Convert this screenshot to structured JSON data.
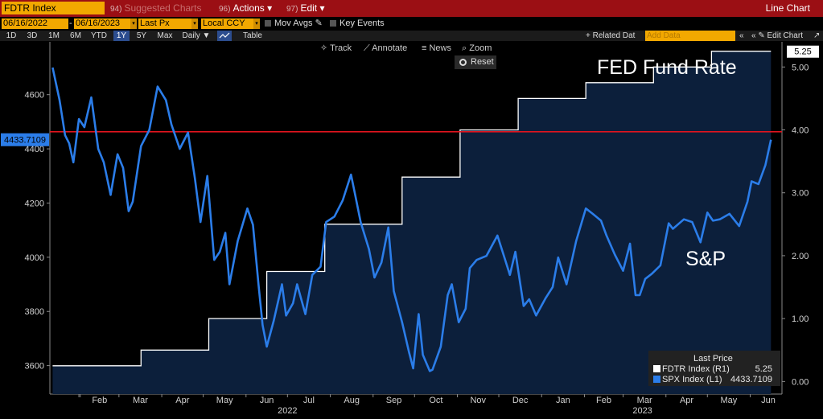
{
  "toolbar": {
    "ticker": "FDTR Index",
    "suggested_num": "94)",
    "suggested_label": "Suggested Charts",
    "actions_num": "96)",
    "actions_label": "Actions",
    "edit_num": "97)",
    "edit_label": "Edit",
    "title": "Line Chart",
    "date_from": "06/16/2022",
    "date_to": "06/16/2023",
    "field": "Last Px",
    "currency": "Local CCY",
    "mov_avgs": "Mov Avgs",
    "key_events": "Key Events",
    "ranges": [
      "1D",
      "3D",
      "1M",
      "6M",
      "YTD",
      "1Y",
      "5Y",
      "Max"
    ],
    "selected_range": "1Y",
    "frequency": "Daily",
    "table_label": "Table",
    "related_data": "+ Related Dat",
    "add_data_placeholder": "Add Data",
    "edit_chart": "Edit Chart"
  },
  "chart_controls": {
    "track": "Track",
    "annotate": "Annotate",
    "news": "News",
    "zoom": "Zoom",
    "reset": "Reset"
  },
  "annotations": {
    "fed": "FED Fund Rate",
    "sp": "S&P"
  },
  "legend": {
    "header": "Last Price",
    "rows": [
      {
        "label": "FDTR Index  (R1)",
        "value": "5.25",
        "color": "#ffffff"
      },
      {
        "label": "SPX Index  (L1)",
        "value": "4433.7109",
        "color": "#2b7de9"
      }
    ]
  },
  "colors": {
    "spx_line": "#2b7de9",
    "fdtr_line": "#ffffff",
    "fdtr_fill": "#0c1f3b",
    "ref_line": "#e0141e"
  },
  "chart_data": {
    "type": "line",
    "x_ticks_months": [
      "Feb",
      "Mar",
      "Apr",
      "May",
      "Jun",
      "Jul",
      "Aug",
      "Sep",
      "Oct",
      "Nov",
      "Dec",
      "Jan",
      "Feb",
      "Mar",
      "Apr",
      "May",
      "Jun"
    ],
    "x_ticks_years": [
      "2022",
      "2023"
    ],
    "left_axis": {
      "ticks": [
        "3600",
        "3800",
        "4000",
        "4200",
        "4400",
        "4600"
      ],
      "range": [
        3495,
        4795
      ]
    },
    "right_axis": {
      "ticks": [
        "0.00",
        "1.00",
        "2.00",
        "3.00",
        "4.00",
        "5.00"
      ],
      "range": [
        -0.2,
        5.4
      ]
    },
    "last_values": {
      "spx": "4433.7109",
      "fdtr": "5.25"
    },
    "reference_line_right": 3.97,
    "series": [
      {
        "name": "FDTR Index",
        "axis": "right",
        "steps": [
          {
            "from": "2022-01-12",
            "value": 0.25
          },
          {
            "from": "2022-03-17",
            "value": 0.5
          },
          {
            "from": "2022-05-05",
            "value": 1.0
          },
          {
            "from": "2022-06-16",
            "value": 1.75
          },
          {
            "from": "2022-07-28",
            "value": 2.5
          },
          {
            "from": "2022-09-22",
            "value": 3.25
          },
          {
            "from": "2022-11-03",
            "value": 4.0
          },
          {
            "from": "2022-12-15",
            "value": 4.5
          },
          {
            "from": "2023-02-02",
            "value": 4.75
          },
          {
            "from": "2023-03-23",
            "value": 5.0
          },
          {
            "from": "2023-05-04",
            "value": 5.25
          }
        ],
        "end": "2023-06-16"
      },
      {
        "name": "SPX Index",
        "axis": "left",
        "points": [
          [
            "2022-01-12",
            4700
          ],
          [
            "2022-01-17",
            4580
          ],
          [
            "2022-01-21",
            4450
          ],
          [
            "2022-01-24",
            4420
          ],
          [
            "2022-01-27",
            4350
          ],
          [
            "2022-01-31",
            4510
          ],
          [
            "2022-02-04",
            4480
          ],
          [
            "2022-02-09",
            4590
          ],
          [
            "2022-02-14",
            4400
          ],
          [
            "2022-02-18",
            4350
          ],
          [
            "2022-02-23",
            4230
          ],
          [
            "2022-02-28",
            4380
          ],
          [
            "2022-03-04",
            4330
          ],
          [
            "2022-03-08",
            4170
          ],
          [
            "2022-03-11",
            4205
          ],
          [
            "2022-03-17",
            4410
          ],
          [
            "2022-03-23",
            4470
          ],
          [
            "2022-03-29",
            4630
          ],
          [
            "2022-04-04",
            4580
          ],
          [
            "2022-04-08",
            4490
          ],
          [
            "2022-04-14",
            4400
          ],
          [
            "2022-04-20",
            4460
          ],
          [
            "2022-04-25",
            4290
          ],
          [
            "2022-04-29",
            4130
          ],
          [
            "2022-05-04",
            4300
          ],
          [
            "2022-05-09",
            3990
          ],
          [
            "2022-05-13",
            4020
          ],
          [
            "2022-05-17",
            4090
          ],
          [
            "2022-05-20",
            3900
          ],
          [
            "2022-05-26",
            4060
          ],
          [
            "2022-06-02",
            4180
          ],
          [
            "2022-06-06",
            4120
          ],
          [
            "2022-06-10",
            3900
          ],
          [
            "2022-06-13",
            3750
          ],
          [
            "2022-06-16",
            3670
          ],
          [
            "2022-06-21",
            3765
          ],
          [
            "2022-06-27",
            3900
          ],
          [
            "2022-06-30",
            3785
          ],
          [
            "2022-07-05",
            3830
          ],
          [
            "2022-07-08",
            3900
          ],
          [
            "2022-07-14",
            3790
          ],
          [
            "2022-07-19",
            3935
          ],
          [
            "2022-07-25",
            3965
          ],
          [
            "2022-07-29",
            4130
          ],
          [
            "2022-08-04",
            4150
          ],
          [
            "2022-08-10",
            4210
          ],
          [
            "2022-08-16",
            4305
          ],
          [
            "2022-08-19",
            4230
          ],
          [
            "2022-08-23",
            4130
          ],
          [
            "2022-08-29",
            4030
          ],
          [
            "2022-09-02",
            3925
          ],
          [
            "2022-09-07",
            3980
          ],
          [
            "2022-09-12",
            4110
          ],
          [
            "2022-09-16",
            3875
          ],
          [
            "2022-09-22",
            3760
          ],
          [
            "2022-09-27",
            3650
          ],
          [
            "2022-09-30",
            3590
          ],
          [
            "2022-10-04",
            3790
          ],
          [
            "2022-10-07",
            3640
          ],
          [
            "2022-10-12",
            3580
          ],
          [
            "2022-10-14",
            3585
          ],
          [
            "2022-10-20",
            3670
          ],
          [
            "2022-10-25",
            3860
          ],
          [
            "2022-10-28",
            3900
          ],
          [
            "2022-11-02",
            3760
          ],
          [
            "2022-11-07",
            3810
          ],
          [
            "2022-11-10",
            3960
          ],
          [
            "2022-11-15",
            3990
          ],
          [
            "2022-11-22",
            4005
          ],
          [
            "2022-11-30",
            4080
          ],
          [
            "2022-12-05",
            4000
          ],
          [
            "2022-12-09",
            3935
          ],
          [
            "2022-12-13",
            4020
          ],
          [
            "2022-12-19",
            3820
          ],
          [
            "2022-12-23",
            3845
          ],
          [
            "2022-12-28",
            3785
          ],
          [
            "2023-01-04",
            3850
          ],
          [
            "2023-01-09",
            3890
          ],
          [
            "2023-01-13",
            3999
          ],
          [
            "2023-01-19",
            3900
          ],
          [
            "2023-01-26",
            4060
          ],
          [
            "2023-02-02",
            4180
          ],
          [
            "2023-02-07",
            4160
          ],
          [
            "2023-02-13",
            4135
          ],
          [
            "2023-02-17",
            4080
          ],
          [
            "2023-02-23",
            4010
          ],
          [
            "2023-03-01",
            3950
          ],
          [
            "2023-03-06",
            4050
          ],
          [
            "2023-03-10",
            3860
          ],
          [
            "2023-03-13",
            3860
          ],
          [
            "2023-03-17",
            3920
          ],
          [
            "2023-03-22",
            3940
          ],
          [
            "2023-03-28",
            3970
          ],
          [
            "2023-04-03",
            4125
          ],
          [
            "2023-04-06",
            4105
          ],
          [
            "2023-04-14",
            4140
          ],
          [
            "2023-04-20",
            4130
          ],
          [
            "2023-04-26",
            4055
          ],
          [
            "2023-05-01",
            4165
          ],
          [
            "2023-05-05",
            4135
          ],
          [
            "2023-05-10",
            4140
          ],
          [
            "2023-05-17",
            4160
          ],
          [
            "2023-05-24",
            4115
          ],
          [
            "2023-05-30",
            4205
          ],
          [
            "2023-06-02",
            4280
          ],
          [
            "2023-06-07",
            4270
          ],
          [
            "2023-06-12",
            4340
          ],
          [
            "2023-06-16",
            4433.71
          ]
        ]
      }
    ]
  }
}
